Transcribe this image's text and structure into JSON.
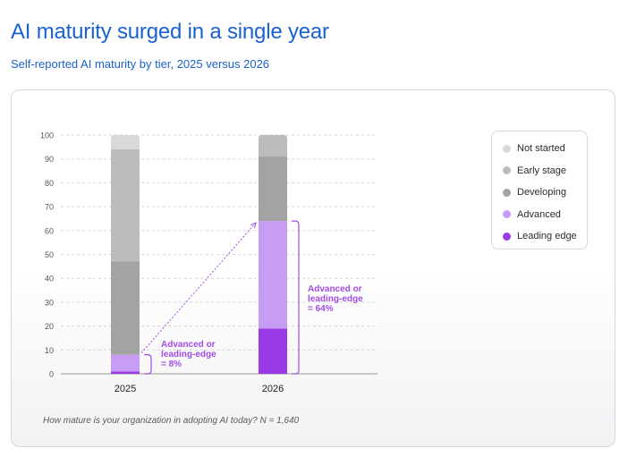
{
  "title": "AI maturity surged in a single year",
  "subtitle": "Self-reported AI maturity by tier, 2025 versus 2026",
  "footnote": "How mature is your organization in adopting AI today? N = 1,640",
  "legend": [
    {
      "label": "Not started",
      "color": "#d9d9d9"
    },
    {
      "label": "Early stage",
      "color": "#bcbcbc"
    },
    {
      "label": "Developing",
      "color": "#a3a3a3"
    },
    {
      "label": "Advanced",
      "color": "#c79cf4"
    },
    {
      "label": "Leading edge",
      "color": "#9b3be8"
    }
  ],
  "chart_data": {
    "type": "bar",
    "stacked": true,
    "categories": [
      "2025",
      "2026"
    ],
    "ylim": [
      0,
      100
    ],
    "yticks": [
      0,
      10,
      20,
      30,
      40,
      50,
      60,
      70,
      80,
      90,
      100
    ],
    "grid": true,
    "legend_position": "right",
    "series": [
      {
        "name": "Leading edge",
        "values": [
          1,
          19
        ]
      },
      {
        "name": "Advanced",
        "values": [
          7,
          45
        ]
      },
      {
        "name": "Developing",
        "values": [
          39,
          27
        ]
      },
      {
        "name": "Early stage",
        "values": [
          47,
          9
        ]
      },
      {
        "name": "Not started",
        "values": [
          6,
          0
        ]
      }
    ],
    "annotations": [
      {
        "category": "2025",
        "from": 0,
        "to": 8,
        "lines": [
          "Advanced or",
          "leading-edge",
          "= 8%"
        ]
      },
      {
        "category": "2026",
        "from": 0,
        "to": 64,
        "lines": [
          "Advanced or",
          "leading-edge",
          "= 64%"
        ]
      }
    ]
  }
}
